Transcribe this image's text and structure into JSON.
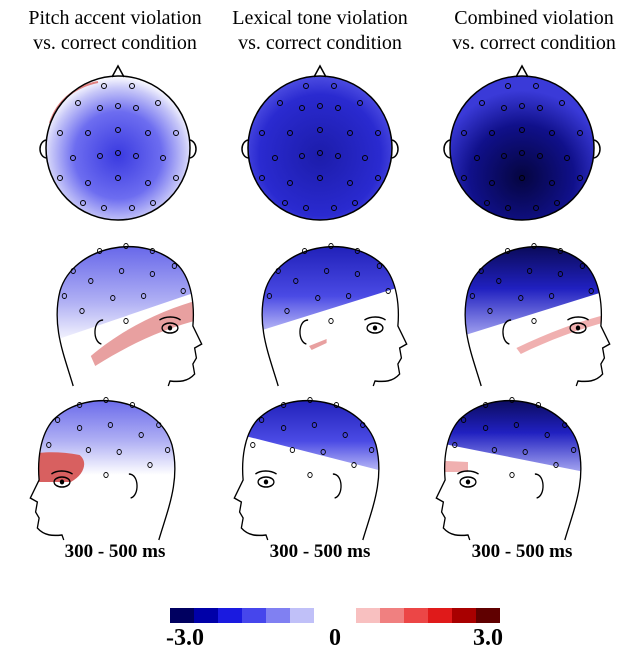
{
  "columns": [
    {
      "title": [
        "Pitch accent violation",
        "vs. correct condition"
      ],
      "time_label": "300 - 500 ms"
    },
    {
      "title": [
        "Lexical tone violation",
        "vs. correct condition"
      ],
      "time_label": "300 - 500 ms"
    },
    {
      "title": [
        "Combined violation",
        "vs. correct condition"
      ],
      "time_label": "300 - 500 ms"
    }
  ],
  "colorbar": {
    "min_label": "-3.0",
    "mid_label": "0",
    "max_label": "3.0"
  }
}
